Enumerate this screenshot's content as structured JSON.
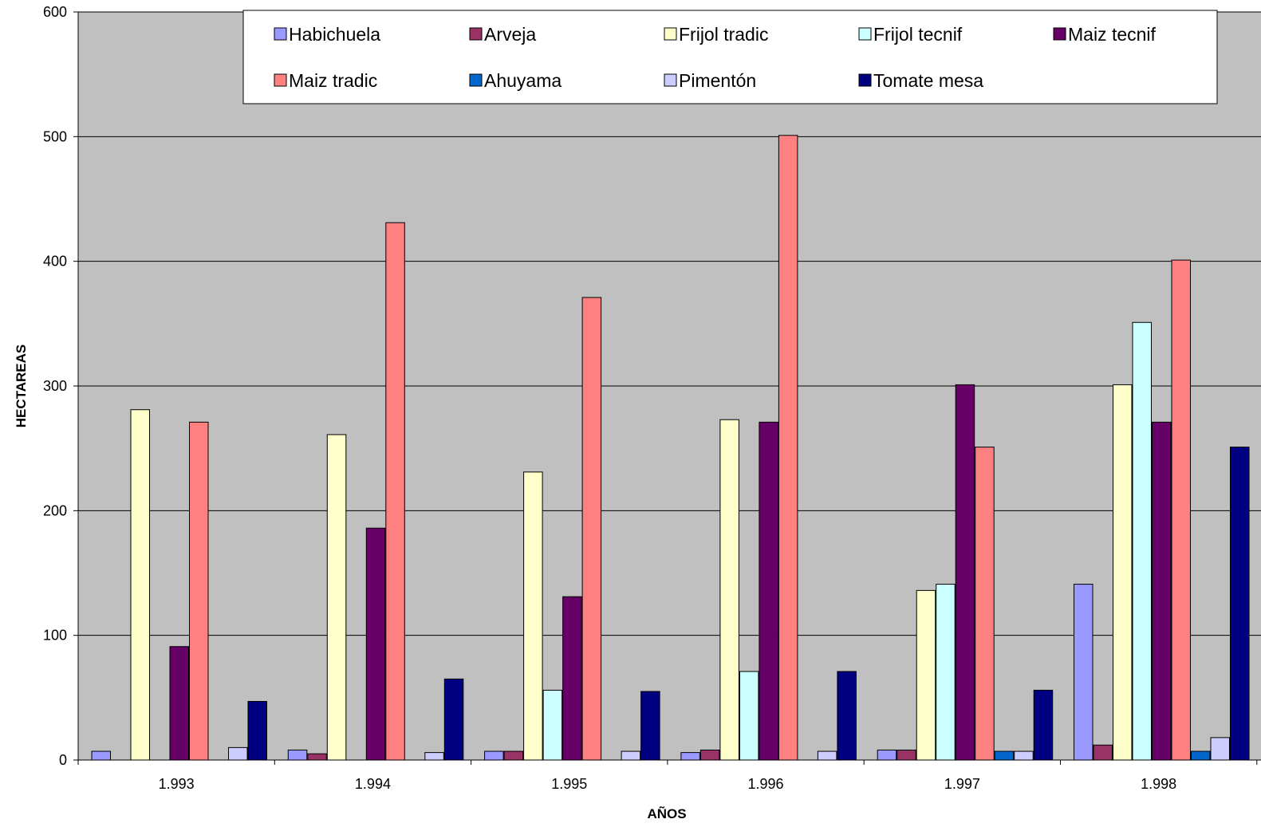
{
  "chart_data": {
    "type": "bar",
    "title": "",
    "xlabel": "AÑOS",
    "ylabel": "HECTAREAS",
    "ylim": [
      0,
      600
    ],
    "yticks": [
      0,
      100,
      200,
      300,
      400,
      500,
      600
    ],
    "grid": true,
    "legend_position": "top",
    "categories": [
      "1.993",
      "1.994",
      "1.995",
      "1.996",
      "1.997",
      "1.998"
    ],
    "series": [
      {
        "name": "Habichuela",
        "color": "#9999ff",
        "values": [
          7,
          8,
          7,
          6,
          8,
          141
        ]
      },
      {
        "name": "Arveja",
        "color": "#993366",
        "values": [
          0,
          5,
          7,
          8,
          8,
          12
        ]
      },
      {
        "name": "Frijol tradic",
        "color": "#ffffcc",
        "values": [
          281,
          261,
          231,
          273,
          136,
          301
        ]
      },
      {
        "name": "Frijol tecnif",
        "color": "#ccffff",
        "values": [
          0,
          0,
          56,
          71,
          141,
          351
        ]
      },
      {
        "name": "Maiz tecnif",
        "color": "#660066",
        "values": [
          91,
          186,
          131,
          271,
          301,
          271
        ]
      },
      {
        "name": "Maiz tradic",
        "color": "#ff8080",
        "values": [
          271,
          431,
          371,
          501,
          251,
          401
        ]
      },
      {
        "name": "Ahuyama",
        "color": "#0066cc",
        "values": [
          0,
          0,
          0,
          0,
          7,
          7
        ]
      },
      {
        "name": "Pimentón",
        "color": "#ccccff",
        "values": [
          10,
          6,
          7,
          7,
          7,
          18
        ]
      },
      {
        "name": "Tomate mesa",
        "color": "#000080",
        "values": [
          47,
          65,
          55,
          71,
          56,
          251
        ]
      }
    ],
    "plot_background": "#c0c0c0",
    "gridline_color": "#000000"
  }
}
